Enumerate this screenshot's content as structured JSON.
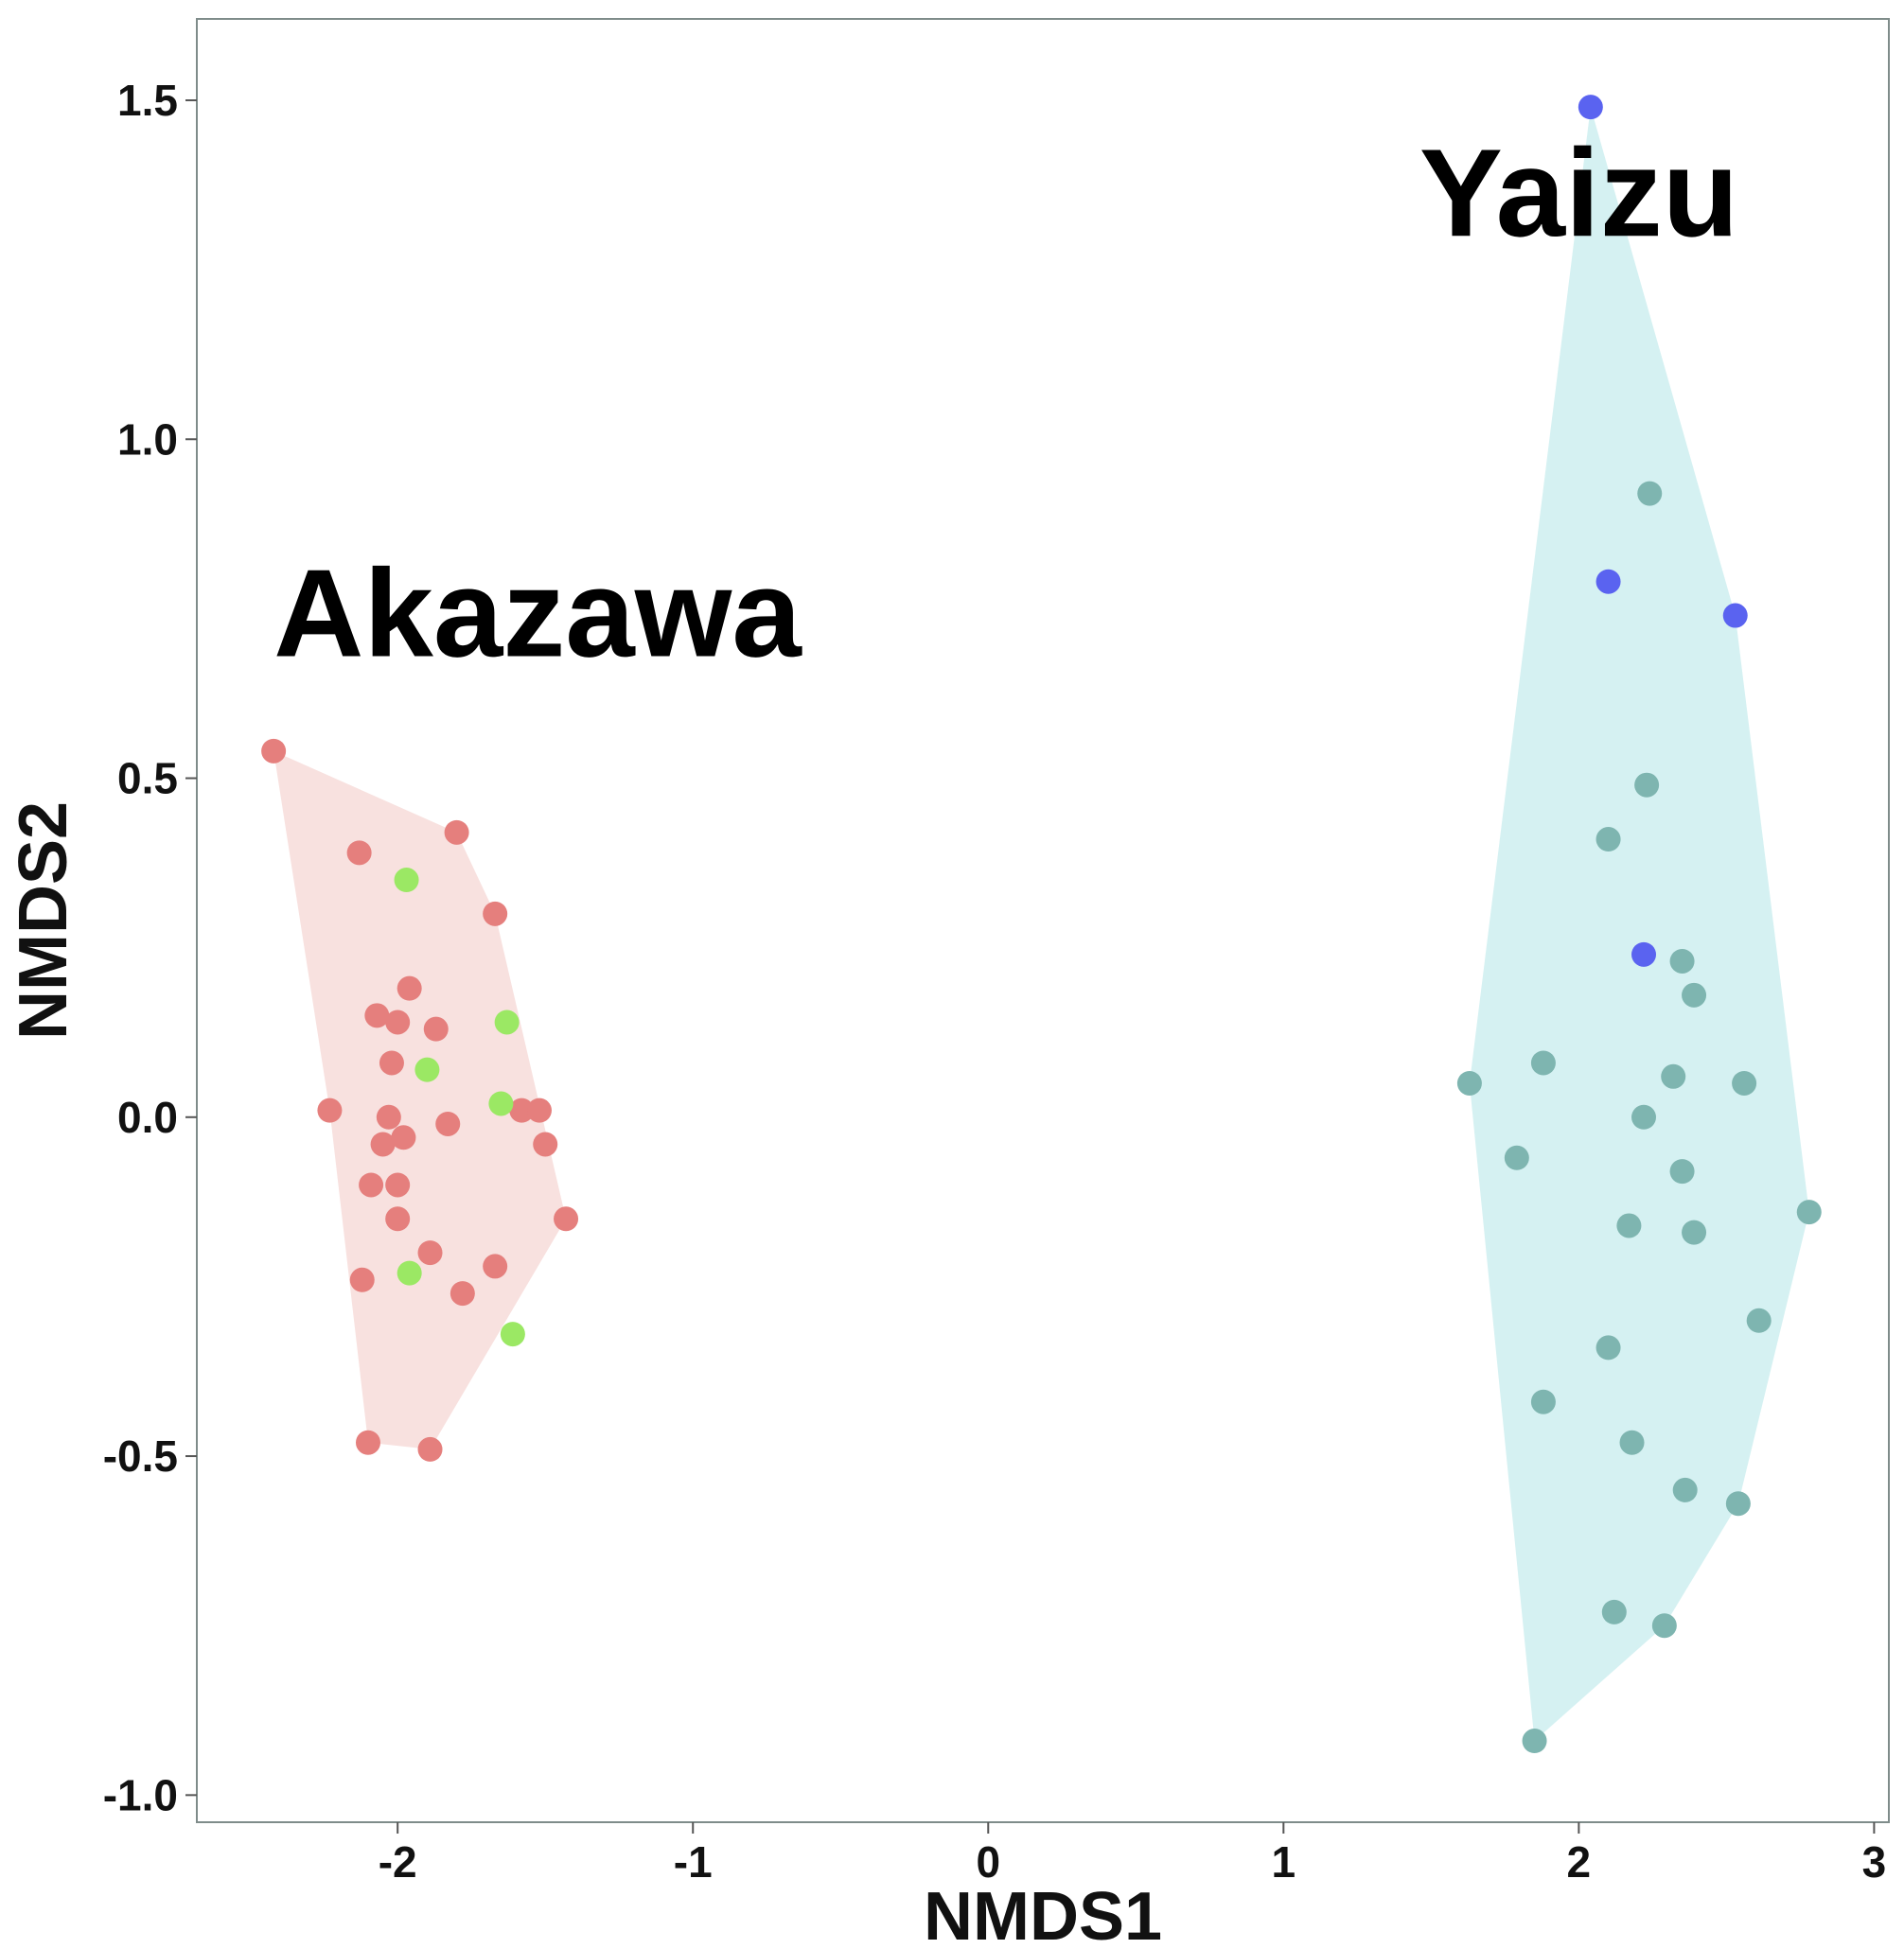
{
  "chart_data": {
    "type": "scatter",
    "xlabel": "NMDS1",
    "ylabel": "NMDS2",
    "xlim": [
      -2.68,
      3.05
    ],
    "ylim": [
      -1.04,
      1.62
    ],
    "xticks": [
      -2,
      -1,
      0,
      1,
      2,
      3
    ],
    "yticks": [
      -1.0,
      -0.5,
      0.0,
      0.5,
      1.0,
      1.5
    ],
    "xtick_labels": [
      "-2",
      "-1",
      "0",
      "1",
      "2",
      "3"
    ],
    "ytick_labels": [
      "-1.0",
      "-0.5",
      "0.0",
      "0.5",
      "1.0",
      "1.5"
    ],
    "grid": false,
    "annotations": [
      {
        "text": "Akazawa",
        "x": -2.42,
        "y": 0.68
      },
      {
        "text": "Yaizu",
        "x": 1.46,
        "y": 1.3
      }
    ],
    "hulls": [
      {
        "group": "Akazawa",
        "color": "#f8e1df",
        "points": [
          [
            -2.42,
            0.54
          ],
          [
            -1.8,
            0.42
          ],
          [
            -1.67,
            0.3
          ],
          [
            -1.43,
            -0.15
          ],
          [
            -1.89,
            -0.49
          ],
          [
            -2.1,
            -0.48
          ],
          [
            -2.23,
            0.01
          ]
        ]
      },
      {
        "group": "Yaizu",
        "color": "#d5f1f2",
        "points": [
          [
            2.04,
            1.49
          ],
          [
            2.53,
            0.74
          ],
          [
            2.78,
            -0.14
          ],
          [
            2.54,
            -0.57
          ],
          [
            2.29,
            -0.75
          ],
          [
            1.85,
            -0.92
          ],
          [
            1.63,
            0.05
          ]
        ]
      }
    ],
    "series": [
      {
        "group": "Akazawa",
        "color": "#e57f7d",
        "points": [
          [
            -2.42,
            0.54
          ],
          [
            -1.8,
            0.42
          ],
          [
            -2.13,
            0.39
          ],
          [
            -1.67,
            0.3
          ],
          [
            -1.96,
            0.19
          ],
          [
            -2.07,
            0.15
          ],
          [
            -2.0,
            0.14
          ],
          [
            -1.87,
            0.13
          ],
          [
            -2.02,
            0.08
          ],
          [
            -2.23,
            0.01
          ],
          [
            -2.03,
            0.0
          ],
          [
            -1.58,
            0.01
          ],
          [
            -1.52,
            0.01
          ],
          [
            -1.83,
            -0.01
          ],
          [
            -2.05,
            -0.04
          ],
          [
            -1.98,
            -0.03
          ],
          [
            -1.5,
            -0.04
          ],
          [
            -2.09,
            -0.1
          ],
          [
            -2.0,
            -0.1
          ],
          [
            -1.43,
            -0.15
          ],
          [
            -2.0,
            -0.15
          ],
          [
            -1.89,
            -0.2
          ],
          [
            -1.67,
            -0.22
          ],
          [
            -2.12,
            -0.24
          ],
          [
            -1.78,
            -0.26
          ],
          [
            -2.1,
            -0.48
          ],
          [
            -1.89,
            -0.49
          ]
        ]
      },
      {
        "group": "Akazawa",
        "color": "#9be864",
        "points": [
          [
            -1.97,
            0.35
          ],
          [
            -1.63,
            0.14
          ],
          [
            -1.9,
            0.07
          ],
          [
            -1.65,
            0.02
          ],
          [
            -1.96,
            -0.23
          ],
          [
            -1.61,
            -0.32
          ]
        ]
      },
      {
        "group": "Yaizu",
        "color": "#7eb5b0",
        "points": [
          [
            2.24,
            0.92
          ],
          [
            2.23,
            0.49
          ],
          [
            2.1,
            0.41
          ],
          [
            2.35,
            0.23
          ],
          [
            2.39,
            0.18
          ],
          [
            1.88,
            0.08
          ],
          [
            2.32,
            0.06
          ],
          [
            1.63,
            0.05
          ],
          [
            2.56,
            0.05
          ],
          [
            2.22,
            0.0
          ],
          [
            1.79,
            -0.06
          ],
          [
            2.35,
            -0.08
          ],
          [
            2.78,
            -0.14
          ],
          [
            2.17,
            -0.16
          ],
          [
            2.39,
            -0.17
          ],
          [
            2.61,
            -0.3
          ],
          [
            2.1,
            -0.34
          ],
          [
            1.88,
            -0.42
          ],
          [
            2.18,
            -0.48
          ],
          [
            2.36,
            -0.55
          ],
          [
            2.54,
            -0.57
          ],
          [
            2.12,
            -0.73
          ],
          [
            2.29,
            -0.75
          ],
          [
            1.85,
            -0.92
          ]
        ]
      },
      {
        "group": "Yaizu",
        "color": "#5a63f0",
        "points": [
          [
            2.04,
            1.49
          ],
          [
            2.1,
            0.79
          ],
          [
            2.53,
            0.74
          ],
          [
            2.22,
            0.24
          ]
        ]
      }
    ]
  }
}
